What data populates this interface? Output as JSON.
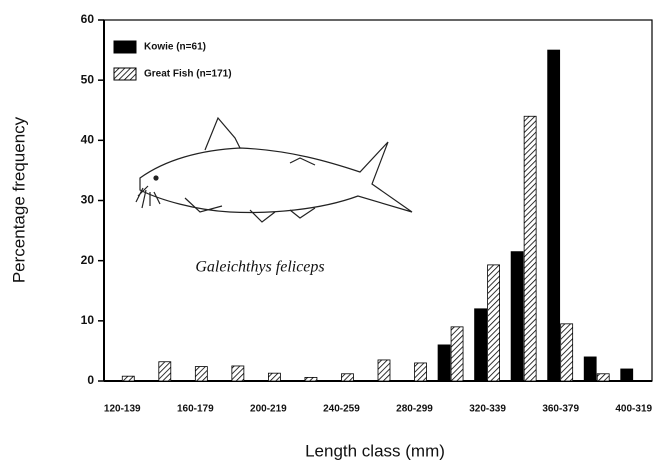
{
  "chart_data": {
    "type": "bar",
    "y_label": "Percentage frequency",
    "x_label": "Length class (mm)",
    "annotation": "Galeichthys feliceps",
    "categories": [
      "120-139",
      null,
      "160-179",
      null,
      "200-219",
      null,
      "240-259",
      null,
      "280-299",
      null,
      "320-339",
      null,
      "360-379",
      null,
      "400-319"
    ],
    "series": [
      {
        "name": "Kowie (n=61)",
        "color": "#000000",
        "pattern": "solid",
        "values": [
          0,
          0,
          0,
          0,
          0,
          0,
          0,
          0,
          0,
          6,
          12,
          21.5,
          55,
          4,
          2
        ]
      },
      {
        "name": "Great Fish (n=171)",
        "color": "#000000",
        "pattern": "hatch",
        "values": [
          0.8,
          3.2,
          2.4,
          2.5,
          1.3,
          0.6,
          1.2,
          3.5,
          3,
          9,
          19.3,
          44,
          9.5,
          1.2,
          0
        ]
      }
    ],
    "ylim": [
      0,
      60
    ],
    "yticks": [
      0,
      10,
      20,
      30,
      40,
      50,
      60
    ],
    "legend": "top-left"
  }
}
